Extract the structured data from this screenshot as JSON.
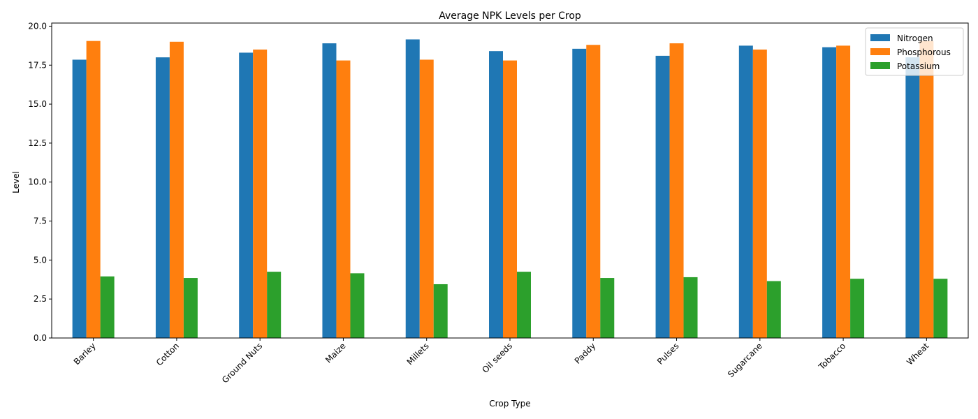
{
  "chart_data": {
    "type": "bar",
    "title": "Average NPK Levels per Crop",
    "xlabel": "Crop Type",
    "ylabel": "Level",
    "ylim": [
      0,
      20.2
    ],
    "yticks": [
      "0.0",
      "2.5",
      "5.0",
      "7.5",
      "10.0",
      "12.5",
      "15.0",
      "17.5",
      "20.0"
    ],
    "ytick_values": [
      0,
      2.5,
      5,
      7.5,
      10,
      12.5,
      15,
      17.5,
      20
    ],
    "categories": [
      "Barley",
      "Cotton",
      "Ground Nuts",
      "Maize",
      "Millets",
      "Oil seeds",
      "Paddy",
      "Pulses",
      "Sugarcane",
      "Tobacco",
      "Wheat"
    ],
    "series": [
      {
        "name": "Nitrogen",
        "color": "#1f77b4",
        "values": [
          17.85,
          18.0,
          18.3,
          18.9,
          19.15,
          18.4,
          18.55,
          18.1,
          18.75,
          18.65,
          18.0
        ]
      },
      {
        "name": "Phosphorous",
        "color": "#ff7f0e",
        "values": [
          19.05,
          19.0,
          18.5,
          17.8,
          17.85,
          17.8,
          18.8,
          18.9,
          18.5,
          18.75,
          19.05
        ]
      },
      {
        "name": "Potassium",
        "color": "#2ca02c",
        "values": [
          3.95,
          3.85,
          4.25,
          4.15,
          3.45,
          4.25,
          3.85,
          3.9,
          3.65,
          3.8,
          3.8
        ]
      }
    ],
    "legend_position": "top-right",
    "grid": false
  }
}
